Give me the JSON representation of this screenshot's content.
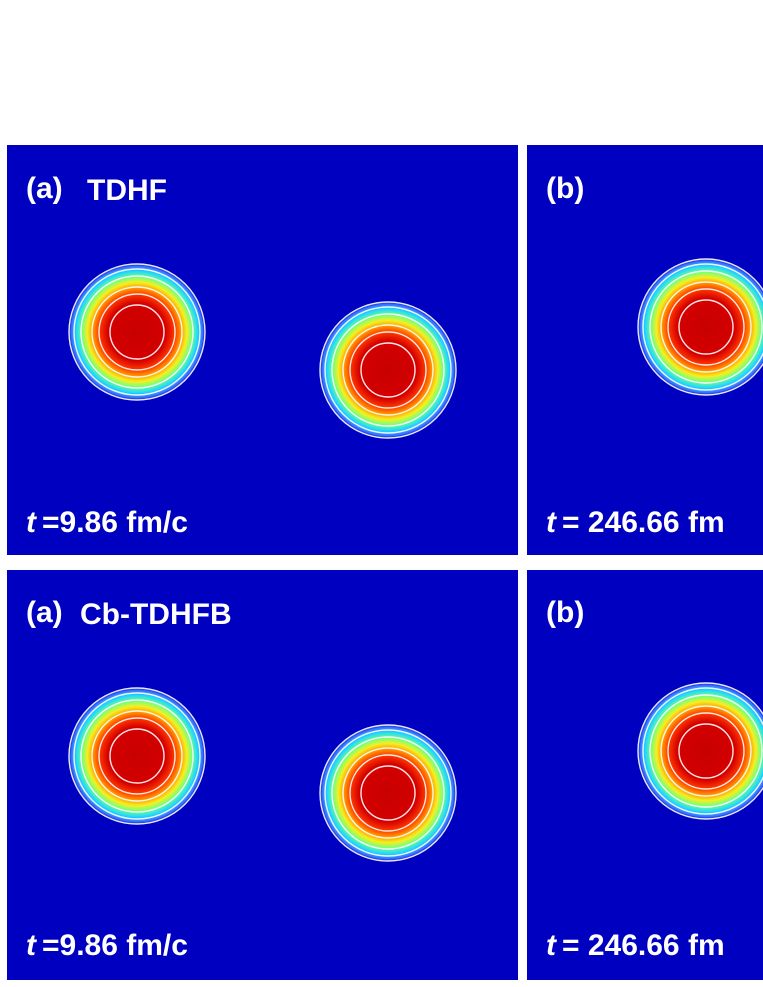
{
  "panels": [
    {
      "label": "(a)",
      "title": "TDHF",
      "time_symbol": "t",
      "time": "=9.86 fm/c"
    },
    {
      "label": "(b)",
      "time_symbol": "t",
      "time": "= 246.66 fm"
    },
    {
      "label": "(a)",
      "title": "Cb-TDHFB",
      "time_symbol": "t",
      "time": "=9.86 fm/c"
    },
    {
      "label": "(b)",
      "time_symbol": "t",
      "time": "= 246.66 fm"
    }
  ]
}
